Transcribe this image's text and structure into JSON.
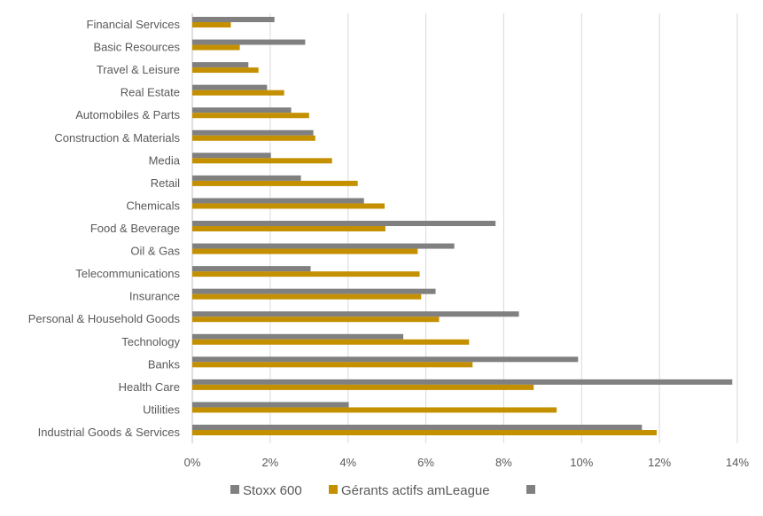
{
  "chart_data": {
    "type": "bar",
    "orientation": "horizontal",
    "title": "",
    "xlabel": "",
    "ylabel": "",
    "xlim": [
      0,
      14
    ],
    "x_ticks": [
      "0%",
      "2%",
      "4%",
      "6%",
      "8%",
      "10%",
      "12%",
      "14%"
    ],
    "grid": true,
    "legend_position": "bottom",
    "categories": [
      "Financial Services",
      "Basic Resources",
      "Travel & Leisure",
      "Real Estate",
      "Automobiles & Parts",
      "Construction & Materials",
      "Media",
      "Retail",
      "Chemicals",
      "Food & Beverage",
      "Oil & Gas",
      "Telecommunications",
      "Insurance",
      "Personal & Household Goods",
      "Technology",
      "Banks",
      "Health Care",
      "Utilities",
      "Industrial Goods & Services"
    ],
    "series": [
      {
        "name": "Stoxx 600",
        "color": "#808080",
        "values": [
          2.11,
          2.9,
          1.44,
          1.92,
          2.54,
          3.11,
          2.02,
          2.79,
          4.41,
          7.79,
          6.73,
          3.04,
          6.25,
          8.39,
          5.42,
          9.91,
          13.87,
          4.02,
          11.55
        ]
      },
      {
        "name": "Gérants actifs amLeague",
        "color": "#C49000",
        "values": [
          0.99,
          1.22,
          1.7,
          2.36,
          3.0,
          3.16,
          3.59,
          4.25,
          4.94,
          4.96,
          5.79,
          5.84,
          5.88,
          6.34,
          7.11,
          7.2,
          8.77,
          9.36,
          11.93
        ]
      }
    ],
    "legend_extra_entry": {
      "name": "",
      "color": "#808080"
    }
  }
}
